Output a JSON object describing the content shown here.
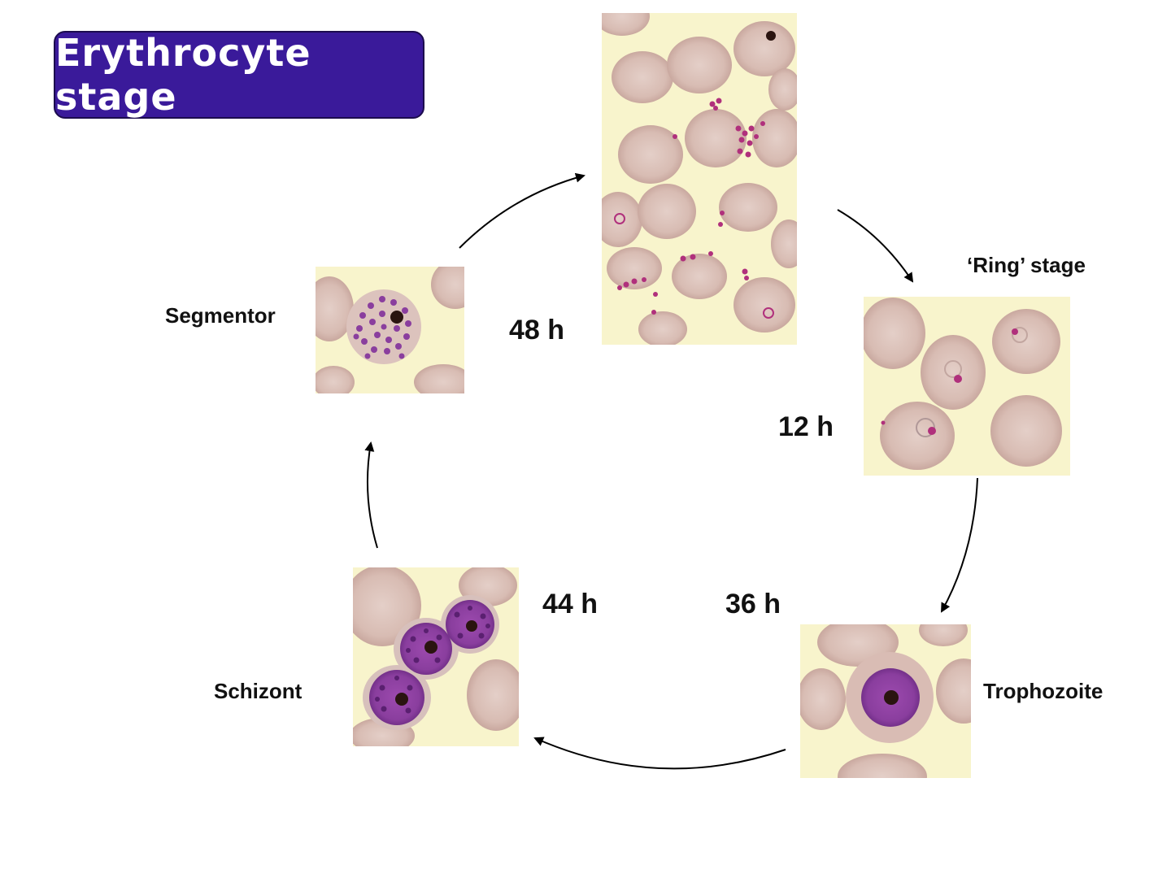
{
  "title": "Erythrocyte stage",
  "stages": {
    "ring": "‘Ring’ stage",
    "trophozoite": "Trophozoite",
    "schizont": "Schizont",
    "segmentor": "Segmentor"
  },
  "times": {
    "ring": "12 h",
    "trophozoite": "36 h",
    "schizont": "44 h",
    "release": "48 h"
  },
  "colors": {
    "title_bg": "#3a1a9a",
    "plasma": "#f8f4cc",
    "rbc": "#dcc0b8",
    "rbc_edge": "#c6a49c",
    "parasite": "#8a3e9e",
    "merozoite": "#b0307c",
    "pigment": "#2a1410"
  },
  "icons": [
    "arrow-icon"
  ]
}
